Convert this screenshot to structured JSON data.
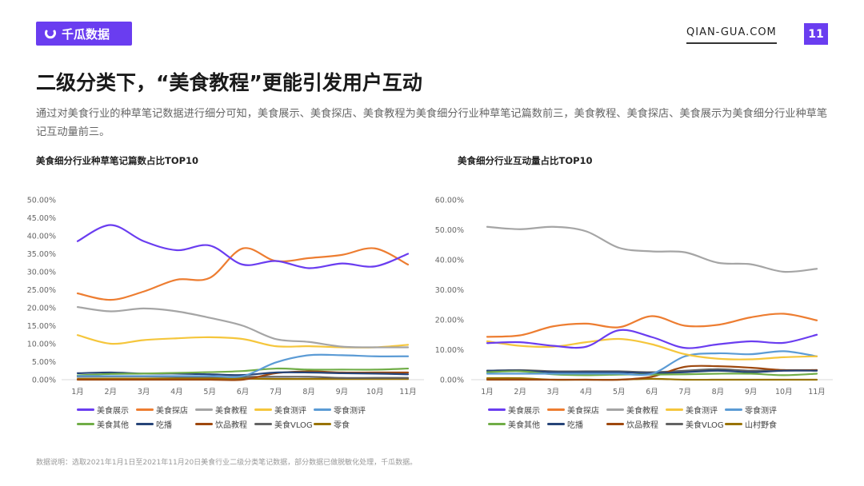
{
  "header": {
    "logo_text": "千瓜数据",
    "site": "QIAN-GUA.COM",
    "page_number": "11"
  },
  "title": "二级分类下，“美食教程”更能引发用户互动",
  "description": "通过对美食行业的种草笔记数据进行细分可知，美食展示、美食探店、美食教程为美食细分行业种草笔记篇数前三，美食教程、美食探店、美食展示为美食细分行业种草笔记互动量前三。",
  "footer": "数据说明：选取2021年1月1日至2021年11月20日美食行业二级分类笔记数据，部分数据已做脱敏化处理，千瓜数据。",
  "chart_data": [
    {
      "type": "line",
      "title": "美食细分行业种草笔记篇数占比TOP10",
      "categories": [
        "1月",
        "2月",
        "3月",
        "4月",
        "5月",
        "6月",
        "7月",
        "8月",
        "9月",
        "10月",
        "11月"
      ],
      "ylim": [
        0,
        50
      ],
      "yticks": [
        "0.00%",
        "5.00%",
        "10.00%",
        "15.00%",
        "20.00%",
        "25.00%",
        "30.00%",
        "35.00%",
        "40.00%",
        "45.00%",
        "50.00%"
      ],
      "legend": "bottom",
      "series": [
        {
          "name": "美食展示",
          "color": "#6a3df0",
          "values": [
            38.5,
            43,
            38.5,
            36,
            37.3,
            32,
            33,
            31,
            32.3,
            31.5,
            35
          ]
        },
        {
          "name": "美食探店",
          "color": "#ed7d31",
          "values": [
            24,
            22.2,
            24.5,
            27.8,
            28.3,
            36.5,
            33,
            33.8,
            34.7,
            36.5,
            32
          ]
        },
        {
          "name": "美食教程",
          "color": "#a5a5a5",
          "values": [
            20.2,
            19,
            19.8,
            19,
            17.2,
            15,
            11.3,
            10.5,
            9.2,
            9,
            9
          ]
        },
        {
          "name": "美食测评",
          "color": "#f5c63c",
          "values": [
            12.4,
            10,
            11,
            11.5,
            11.8,
            11.3,
            9.3,
            9.3,
            9,
            9,
            9.7
          ]
        },
        {
          "name": "零食测评",
          "color": "#5b9bd5",
          "values": [
            1,
            1,
            1,
            1,
            1,
            1,
            4.8,
            6.8,
            6.8,
            6.5,
            6.5
          ]
        },
        {
          "name": "美食其他",
          "color": "#70ad47",
          "values": [
            1.2,
            1.6,
            1.7,
            1.9,
            2.1,
            2.4,
            3.1,
            2.8,
            2.8,
            2.8,
            3.1
          ]
        },
        {
          "name": "吃播",
          "color": "#264478",
          "values": [
            1.8,
            2,
            1.7,
            1.7,
            1.5,
            1.3,
            2,
            2,
            1.8,
            1.7,
            1.5
          ]
        },
        {
          "name": "饮品教程",
          "color": "#9e480e",
          "values": [
            0,
            0,
            0,
            0,
            0,
            0,
            1.8,
            2.3,
            2,
            2,
            2
          ]
        },
        {
          "name": "美食VLOG",
          "color": "#636363",
          "values": [
            0.8,
            0.9,
            0.9,
            0.8,
            0.8,
            0.8,
            0.8,
            0.8,
            0.5,
            0.5,
            0.5
          ]
        },
        {
          "name": "零食",
          "color": "#997300",
          "values": [
            0.2,
            0.3,
            0.3,
            0.3,
            0.3,
            0.3,
            0.2,
            0.2,
            0.2,
            0.2,
            0.2
          ]
        }
      ]
    },
    {
      "type": "line",
      "title": "美食细分行业互动量占比TOP10",
      "categories": [
        "1月",
        "2月",
        "3月",
        "4月",
        "5月",
        "6月",
        "7月",
        "8月",
        "9月",
        "10月",
        "11月"
      ],
      "ylim": [
        0,
        60
      ],
      "yticks": [
        "0.00%",
        "10.00%",
        "20.00%",
        "30.00%",
        "40.00%",
        "50.00%",
        "60.00%"
      ],
      "legend": "bottom",
      "series": [
        {
          "name": "美食展示",
          "color": "#6a3df0",
          "values": [
            12.2,
            12.5,
            11.3,
            11,
            16.5,
            14.2,
            10.6,
            11.8,
            12.8,
            12.3,
            15
          ]
        },
        {
          "name": "美食探店",
          "color": "#ed7d31",
          "values": [
            14.3,
            14.8,
            17.8,
            18.7,
            17.5,
            21.2,
            18,
            18.3,
            20.8,
            22,
            19.8
          ]
        },
        {
          "name": "美食教程",
          "color": "#a5a5a5",
          "values": [
            51,
            50.2,
            51,
            49.5,
            44,
            42.8,
            42.5,
            39,
            38.5,
            36,
            37
          ]
        },
        {
          "name": "美食测评",
          "color": "#f5c63c",
          "values": [
            12.8,
            11.3,
            11,
            12.5,
            13.6,
            11.8,
            8.5,
            7,
            6.8,
            7.5,
            7.8
          ]
        },
        {
          "name": "零食测评",
          "color": "#5b9bd5",
          "values": [
            2,
            2,
            2,
            2,
            2,
            2,
            7.8,
            8.8,
            8.5,
            9.5,
            7.8
          ]
        },
        {
          "name": "美食其他",
          "color": "#70ad47",
          "values": [
            2.5,
            2.8,
            1.8,
            1.5,
            1.7,
            1.7,
            1.8,
            2,
            2,
            1.5,
            2
          ]
        },
        {
          "name": "吃播",
          "color": "#264478",
          "values": [
            3,
            3,
            2.5,
            2.5,
            2.5,
            2.2,
            2.5,
            3,
            2.5,
            3,
            3
          ]
        },
        {
          "name": "饮品教程",
          "color": "#9e480e",
          "values": [
            0,
            0,
            0,
            0,
            0,
            1,
            4.3,
            4.5,
            4,
            3.2,
            3.2
          ]
        },
        {
          "name": "美食VLOG",
          "color": "#636363",
          "values": [
            3,
            3.2,
            2.8,
            2.8,
            2.8,
            2.5,
            3,
            3.5,
            3,
            3.2,
            3.2
          ]
        },
        {
          "name": "山村野食",
          "color": "#997300",
          "values": [
            0.5,
            0.5,
            0,
            0,
            0,
            0.3,
            0,
            0,
            0,
            0,
            0
          ]
        }
      ]
    }
  ]
}
